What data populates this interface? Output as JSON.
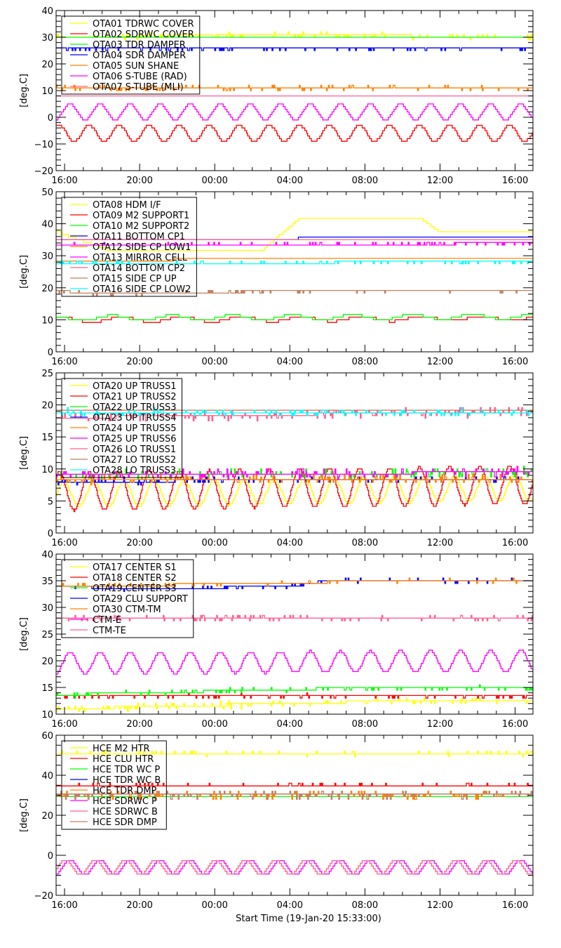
{
  "chart_data": [
    {
      "type": "line",
      "ylabel": "[deg.C]",
      "ylim": [
        -20,
        40
      ],
      "yticks": [
        -20,
        -10,
        0,
        10,
        20,
        30,
        40
      ],
      "xticks": [
        "16:00",
        "20:00",
        "00:00",
        "04:00",
        "08:00",
        "12:00",
        "16:00"
      ],
      "legend": "top-left",
      "series": [
        {
          "name": "OTA01 TDRWC COVER",
          "color": "#ffff00",
          "points": [
            [
              "19-Jan 15:33",
              30
            ],
            [
              "20-Jan 04:00",
              31
            ],
            [
              "20-Jan 16:57",
              30
            ]
          ],
          "noise": 1.2
        },
        {
          "name": "OTA02 SDRWC COVER",
          "color": "#ff0000",
          "points": [
            [
              "19-Jan 15:33",
              -6
            ],
            [
              "20-Jan 16:57",
              -6
            ]
          ],
          "oscillation": {
            "amplitude": 3,
            "period_hours": 1.6
          }
        },
        {
          "name": "OTA03 TDR DAMPER",
          "color": "#00ff00",
          "points": [
            [
              "19-Jan 15:33",
              30
            ],
            [
              "20-Jan 16:57",
              30
            ]
          ],
          "noise": 0.4
        },
        {
          "name": "OTA04 SDR DAMPER",
          "color": "#0000ff",
          "points": [
            [
              "19-Jan 15:33",
              25.5
            ],
            [
              "20-Jan 16:57",
              25.5
            ]
          ],
          "noise": 0.8
        },
        {
          "name": "OTA05 SUN SHANE",
          "color": "#ff8000",
          "points": [
            [
              "19-Jan 15:33",
              11
            ],
            [
              "20-Jan 16:57",
              11
            ]
          ],
          "noise": 1.0
        },
        {
          "name": "OTA06 S-TUBE (RAD)",
          "color": "#ff00ff",
          "points": [
            [
              "19-Jan 15:33",
              2
            ],
            [
              "20-Jan 16:57",
              2
            ]
          ],
          "oscillation": {
            "amplitude": 3,
            "period_hours": 1.6
          }
        },
        {
          "name": "OTA07 S-TUBE (MLI)",
          "color": "#ff6090",
          "points": [
            [
              "19-Jan 15:33",
              8
            ],
            [
              "20-Jan 16:57",
              8
            ]
          ],
          "noise": 0.5
        }
      ]
    },
    {
      "type": "line",
      "ylabel": "[deg.C]",
      "ylim": [
        0,
        50
      ],
      "yticks": [
        0,
        10,
        20,
        30,
        40,
        50
      ],
      "xticks": [
        "16:00",
        "20:00",
        "00:00",
        "04:00",
        "08:00",
        "12:00",
        "16:00"
      ],
      "legend": "top-left",
      "series": [
        {
          "name": "OTA08 HDM I/F",
          "color": "#ffff00",
          "points": [
            [
              "19-Jan 15:33",
              37.5
            ],
            [
              "19-Jan 18:30",
              31.5
            ],
            [
              "20-Jan 02:30",
              31.5
            ],
            [
              "20-Jan 04:30",
              41.5
            ],
            [
              "20-Jan 11:00",
              41.5
            ],
            [
              "20-Jan 12:00",
              37.5
            ],
            [
              "20-Jan 16:57",
              37.5
            ]
          ]
        },
        {
          "name": "OTA09 M2 SUPPORT1",
          "color": "#ff0000",
          "points": [
            [
              "19-Jan 15:33",
              10
            ],
            [
              "20-Jan 16:57",
              10.5
            ]
          ],
          "oscillation": {
            "amplitude": 0.8,
            "period_hours": 3.2
          }
        },
        {
          "name": "OTA10 M2 SUPPORT2",
          "color": "#00ff00",
          "points": [
            [
              "19-Jan 15:33",
              10.5
            ],
            [
              "20-Jan 16:57",
              11
            ]
          ],
          "oscillation": {
            "amplitude": 0.8,
            "period_hours": 3.2
          }
        },
        {
          "name": "OTA11 BOTTOM CP1",
          "color": "#0000ff",
          "points": [
            [
              "19-Jan 15:33",
              35
            ],
            [
              "20-Jan 07:00",
              35.5
            ],
            [
              "20-Jan 16:57",
              35.5
            ]
          ]
        },
        {
          "name": "OTA12 SIDE CP LOW1",
          "color": "#ff8000",
          "points": [
            [
              "19-Jan 15:33",
              28.5
            ],
            [
              "20-Jan 04:00",
              29
            ],
            [
              "20-Jan 16:57",
              29
            ]
          ]
        },
        {
          "name": "OTA13 MIRROR CELL",
          "color": "#ff00ff",
          "points": [
            [
              "19-Jan 15:33",
              33.5
            ],
            [
              "20-Jan 16:57",
              33.8
            ]
          ],
          "noise": 0.3
        },
        {
          "name": "OTA14 BOTTOM CP2",
          "color": "#ff6090",
          "points": [
            [
              "19-Jan 15:33",
              35
            ],
            [
              "20-Jan 16:57",
              35
            ]
          ]
        },
        {
          "name": "OTA15 SIDE CP UP",
          "color": "#c08060",
          "points": [
            [
              "19-Jan 15:33",
              19
            ],
            [
              "19-Jan 18:30",
              18
            ],
            [
              "20-Jan 04:00",
              19
            ],
            [
              "20-Jan 16:57",
              19
            ]
          ],
          "noise": 0.5
        },
        {
          "name": "OTA16 SIDE CP LOW2",
          "color": "#00ffff",
          "points": [
            [
              "19-Jan 15:33",
              27.8
            ],
            [
              "20-Jan 16:57",
              28
            ]
          ],
          "noise": 0.4
        }
      ]
    },
    {
      "type": "line",
      "ylabel": "[deg.C]",
      "ylim": [
        0,
        25
      ],
      "yticks": [
        0,
        5,
        10,
        15,
        20,
        25
      ],
      "xticks": [
        "16:00",
        "20:00",
        "00:00",
        "04:00",
        "08:00",
        "12:00",
        "16:00"
      ],
      "legend": "top-left",
      "series": [
        {
          "name": "OTA20 UP TRUSS1",
          "color": "#ffff00",
          "points": [
            [
              "19-Jan 15:33",
              6
            ],
            [
              "20-Jan 16:57",
              7
            ]
          ],
          "oscillation": {
            "amplitude": 2,
            "period_hours": 1.6
          }
        },
        {
          "name": "OTA21 UP TRUSS2",
          "color": "#ff0000",
          "points": [
            [
              "19-Jan 15:33",
              6.5
            ],
            [
              "20-Jan 16:57",
              7.5
            ]
          ],
          "oscillation": {
            "amplitude": 3,
            "period_hours": 1.6
          }
        },
        {
          "name": "OTA22 UP TRUSS3",
          "color": "#00ff00",
          "points": [
            [
              "19-Jan 15:33",
              9
            ],
            [
              "20-Jan 16:57",
              9.5
            ]
          ],
          "noise": 0.8
        },
        {
          "name": "OTA23 UP TRUSS4",
          "color": "#0000ff",
          "points": [
            [
              "19-Jan 15:33",
              8
            ],
            [
              "20-Jan 16:57",
              8.5
            ]
          ],
          "noise": 0.5
        },
        {
          "name": "OTA24 UP TRUSS5",
          "color": "#ff8000",
          "points": [
            [
              "19-Jan 15:33",
              8.5
            ],
            [
              "20-Jan 16:57",
              8.5
            ]
          ],
          "noise": 0.8
        },
        {
          "name": "OTA25 UP TRUSS6",
          "color": "#ff00ff",
          "points": [
            [
              "19-Jan 15:33",
              9
            ],
            [
              "20-Jan 16:57",
              9.5
            ]
          ],
          "noise": 0.8
        },
        {
          "name": "OTA26 LO TRUSS1",
          "color": "#ff6090",
          "points": [
            [
              "19-Jan 15:33",
              18
            ],
            [
              "20-Jan 16:57",
              19
            ]
          ],
          "noise": 0.8
        },
        {
          "name": "OTA27 LO TRUSS2",
          "color": "#c08060",
          "points": [
            [
              "19-Jan 15:33",
              19
            ],
            [
              "20-Jan 16:57",
              19.3
            ]
          ]
        },
        {
          "name": "OTA28 LO TRUSS3",
          "color": "#00ffff",
          "points": [
            [
              "19-Jan 15:33",
              18.8
            ],
            [
              "20-Jan 16:57",
              18.8
            ]
          ],
          "noise": 0.6
        }
      ]
    },
    {
      "type": "line",
      "ylabel": "[deg.C]",
      "ylim": [
        10,
        40
      ],
      "yticks": [
        10,
        15,
        20,
        25,
        30,
        35,
        40
      ],
      "xticks": [
        "16:00",
        "20:00",
        "00:00",
        "04:00",
        "08:00",
        "12:00",
        "16:00"
      ],
      "legend": "top-left",
      "series": [
        {
          "name": "OTA17 CENTER S1",
          "color": "#ffff00",
          "points": [
            [
              "19-Jan 15:33",
              11
            ],
            [
              "20-Jan 10:00",
              12.5
            ],
            [
              "20-Jan 16:57",
              12.5
            ]
          ],
          "noise": 0.6
        },
        {
          "name": "OTA18 CENTER S2",
          "color": "#ff0000",
          "points": [
            [
              "19-Jan 15:33",
              13.3
            ],
            [
              "20-Jan 16:57",
              13.3
            ]
          ],
          "noise": 0.5
        },
        {
          "name": "OTA19 CENTER S3",
          "color": "#00ff00",
          "points": [
            [
              "19-Jan 15:33",
              13.6
            ],
            [
              "20-Jan 06:00",
              14.8
            ],
            [
              "20-Jan 16:57",
              14.8
            ]
          ],
          "noise": 0.5
        },
        {
          "name": "OTA29 CLU SUPPORT",
          "color": "#0000ff",
          "points": [
            [
              "19-Jan 15:33",
              34
            ],
            [
              "19-Jan 20:00",
              33.4
            ],
            [
              "20-Jan 04:00",
              34
            ],
            [
              "20-Jan 06:00",
              35
            ],
            [
              "20-Jan 16:57",
              35
            ]
          ],
          "noise": 0.3
        },
        {
          "name": "OTA30 CTM-TM",
          "color": "#ff8000",
          "points": [
            [
              "19-Jan 15:33",
              34
            ],
            [
              "20-Jan 04:00",
              34.5
            ],
            [
              "20-Jan 08:00",
              35
            ],
            [
              "20-Jan 16:57",
              35
            ]
          ],
          "noise": 0.3
        },
        {
          "name": "CTM-E",
          "color": "#ff00ff",
          "points": [
            [
              "19-Jan 15:33",
              19.5
            ],
            [
              "20-Jan 16:57",
              20
            ]
          ],
          "oscillation": {
            "amplitude": 2,
            "period_hours": 1.6
          }
        },
        {
          "name": "CTM-TE",
          "color": "#ff6090",
          "points": [
            [
              "19-Jan 15:33",
              28
            ],
            [
              "20-Jan 16:57",
              28
            ]
          ],
          "noise": 0.6
        }
      ]
    },
    {
      "type": "line",
      "ylabel": "[deg.C]",
      "xlabel": "Start Time (19-Jan-20 15:33:00)",
      "ylim": [
        -20,
        60
      ],
      "yticks": [
        -20,
        0,
        20,
        40,
        60
      ],
      "xticks": [
        "16:00",
        "20:00",
        "00:00",
        "04:00",
        "08:00",
        "12:00",
        "16:00"
      ],
      "legend": "top-left",
      "series": [
        {
          "name": "HCE M2 HTR",
          "color": "#ffff00",
          "points": [
            [
              "19-Jan 15:33",
              51
            ],
            [
              "20-Jan 16:57",
              51
            ]
          ],
          "noise": 1.2
        },
        {
          "name": "HCE CLU HTR",
          "color": "#ff0000",
          "points": [
            [
              "19-Jan 15:33",
              35
            ],
            [
              "20-Jan 16:57",
              35
            ]
          ],
          "noise": 1.0
        },
        {
          "name": "HCE TDR WC P",
          "color": "#00ff00",
          "points": [
            [
              "19-Jan 15:33",
              29.5
            ],
            [
              "20-Jan 16:57",
              29.5
            ]
          ]
        },
        {
          "name": "HCE TDR WC B",
          "color": "#0000ff",
          "points": [
            [
              "19-Jan 15:33",
              30.5
            ],
            [
              "20-Jan 16:57",
              30.5
            ]
          ],
          "noise": 0.5
        },
        {
          "name": "HCE TDR DMP",
          "color": "#ff8000",
          "points": [
            [
              "19-Jan 15:33",
              30
            ],
            [
              "20-Jan 16:57",
              30
            ]
          ],
          "noise": 2
        },
        {
          "name": "HCE SDRWC P",
          "color": "#ff00ff",
          "points": [
            [
              "19-Jan 15:33",
              -6
            ],
            [
              "20-Jan 16:57",
              -6
            ]
          ],
          "oscillation": {
            "amplitude": 3.5,
            "period_hours": 1.6
          }
        },
        {
          "name": "HCE SDRWC B",
          "color": "#ff6090",
          "points": [
            [
              "19-Jan 15:33",
              -6
            ],
            [
              "20-Jan 16:57",
              -6
            ]
          ],
          "oscillation": {
            "amplitude": 3.5,
            "period_hours": 1.6
          }
        },
        {
          "name": "HCE SDR DMP",
          "color": "#c08060",
          "points": [
            [
              "19-Jan 15:33",
              30
            ],
            [
              "20-Jan 16:57",
              30
            ]
          ],
          "noise": 2.5
        }
      ]
    }
  ]
}
